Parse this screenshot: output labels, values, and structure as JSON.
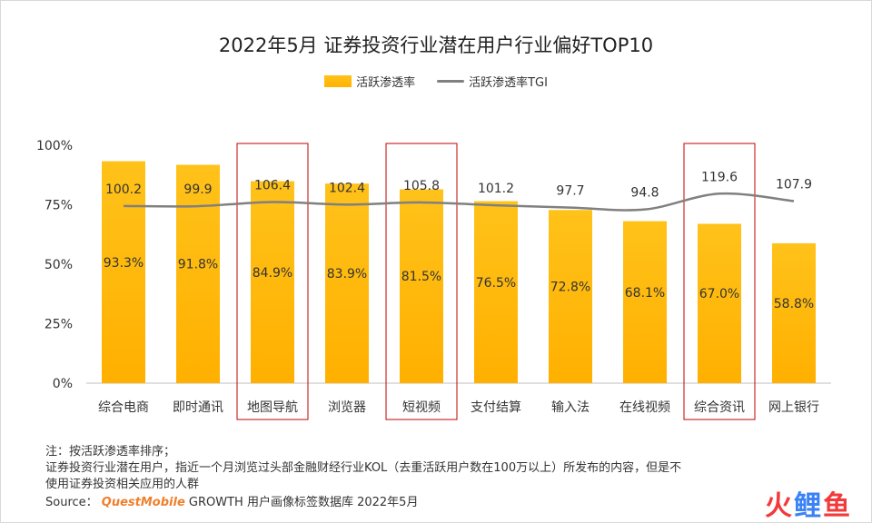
{
  "title": "2022年5月 证券投资行业潜在用户行业偏好TOP10",
  "legend": {
    "bar_label": "活跃渗透率",
    "line_label": "活跃渗透率TGI"
  },
  "colors": {
    "bar": "#FFB300",
    "bar_top": "#FFC21A",
    "line": "#808080",
    "highlight_box": "#C00000",
    "brand": "#F07F2B"
  },
  "chart_data": {
    "type": "bar",
    "categories": [
      "综合电商",
      "即时通讯",
      "地图导航",
      "浏览器",
      "短视频",
      "支付结算",
      "输入法",
      "在线视频",
      "综合资讯",
      "网上银行"
    ],
    "series": [
      {
        "name": "活跃渗透率",
        "type": "bar",
        "values": [
          93.3,
          91.8,
          84.9,
          83.9,
          81.5,
          76.5,
          72.8,
          68.1,
          67.0,
          58.8
        ],
        "unit": "%"
      },
      {
        "name": "活跃渗透率TGI",
        "type": "line",
        "values": [
          100.2,
          99.9,
          106.4,
          102.4,
          105.8,
          101.2,
          97.7,
          94.8,
          119.6,
          107.9
        ]
      }
    ],
    "bar_labels": [
      "93.3%",
      "91.8%",
      "84.9%",
      "83.9%",
      "81.5%",
      "76.5%",
      "72.8%",
      "68.1%",
      "67.0%",
      "58.8%"
    ],
    "line_labels": [
      "100.2",
      "99.9",
      "106.4",
      "102.4",
      "105.8",
      "101.2",
      "97.7",
      "94.8",
      "119.6",
      "107.9"
    ],
    "y_ticks": [
      "0%",
      "25%",
      "50%",
      "75%",
      "100%"
    ],
    "ylim": [
      0,
      100
    ],
    "highlighted_categories": [
      "地图导航",
      "短视频",
      "综合资讯"
    ],
    "grid": false,
    "legend_position": "top-center"
  },
  "notes": {
    "line1": "注：按活跃渗透率排序；",
    "line2": "证券投资行业潜在用户，指近一个月浏览过头部金融财经行业KOL（去重活跃用户数在100万以上）所发布的内容，但是不",
    "line3": "使用证券投资相关应用的人群"
  },
  "source": {
    "prefix": "Source：",
    "brand": "QuestMobile",
    "rest": "GROWTH 用户画像标签数据库 2022年5月"
  },
  "watermark": {
    "logo_left": "火",
    "logo_mid": "鲤",
    "logo_right": "鱼"
  }
}
